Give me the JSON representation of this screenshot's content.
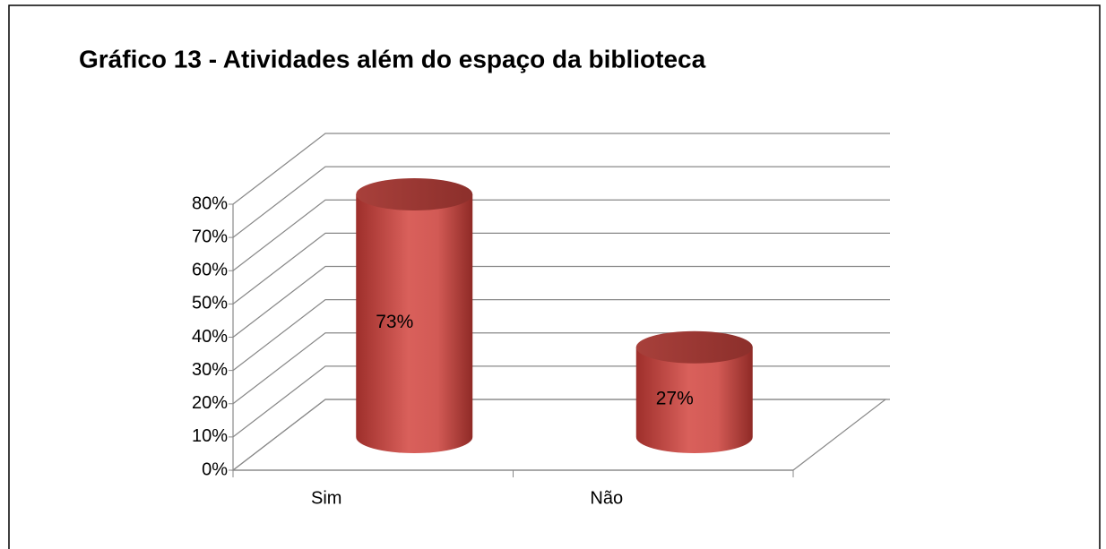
{
  "chart_data": {
    "type": "bar3d_cylinder",
    "title": "Gráfico 13 - Atividades além do espaço da biblioteca",
    "categories": [
      "Sim",
      "Não"
    ],
    "values": [
      73,
      27
    ],
    "value_labels": [
      "73%",
      "27%"
    ],
    "color": "#c0504d",
    "ylim": [
      0,
      80
    ],
    "yticks": [
      {
        "value": 0,
        "label": "0%"
      },
      {
        "value": 10,
        "label": "10%"
      },
      {
        "value": 20,
        "label": "20%"
      },
      {
        "value": 30,
        "label": "30%"
      },
      {
        "value": 40,
        "label": "40%"
      },
      {
        "value": 50,
        "label": "50%"
      },
      {
        "value": 60,
        "label": "60%"
      },
      {
        "value": 70,
        "label": "70%"
      },
      {
        "value": 80,
        "label": "80%"
      }
    ],
    "grid": true
  }
}
